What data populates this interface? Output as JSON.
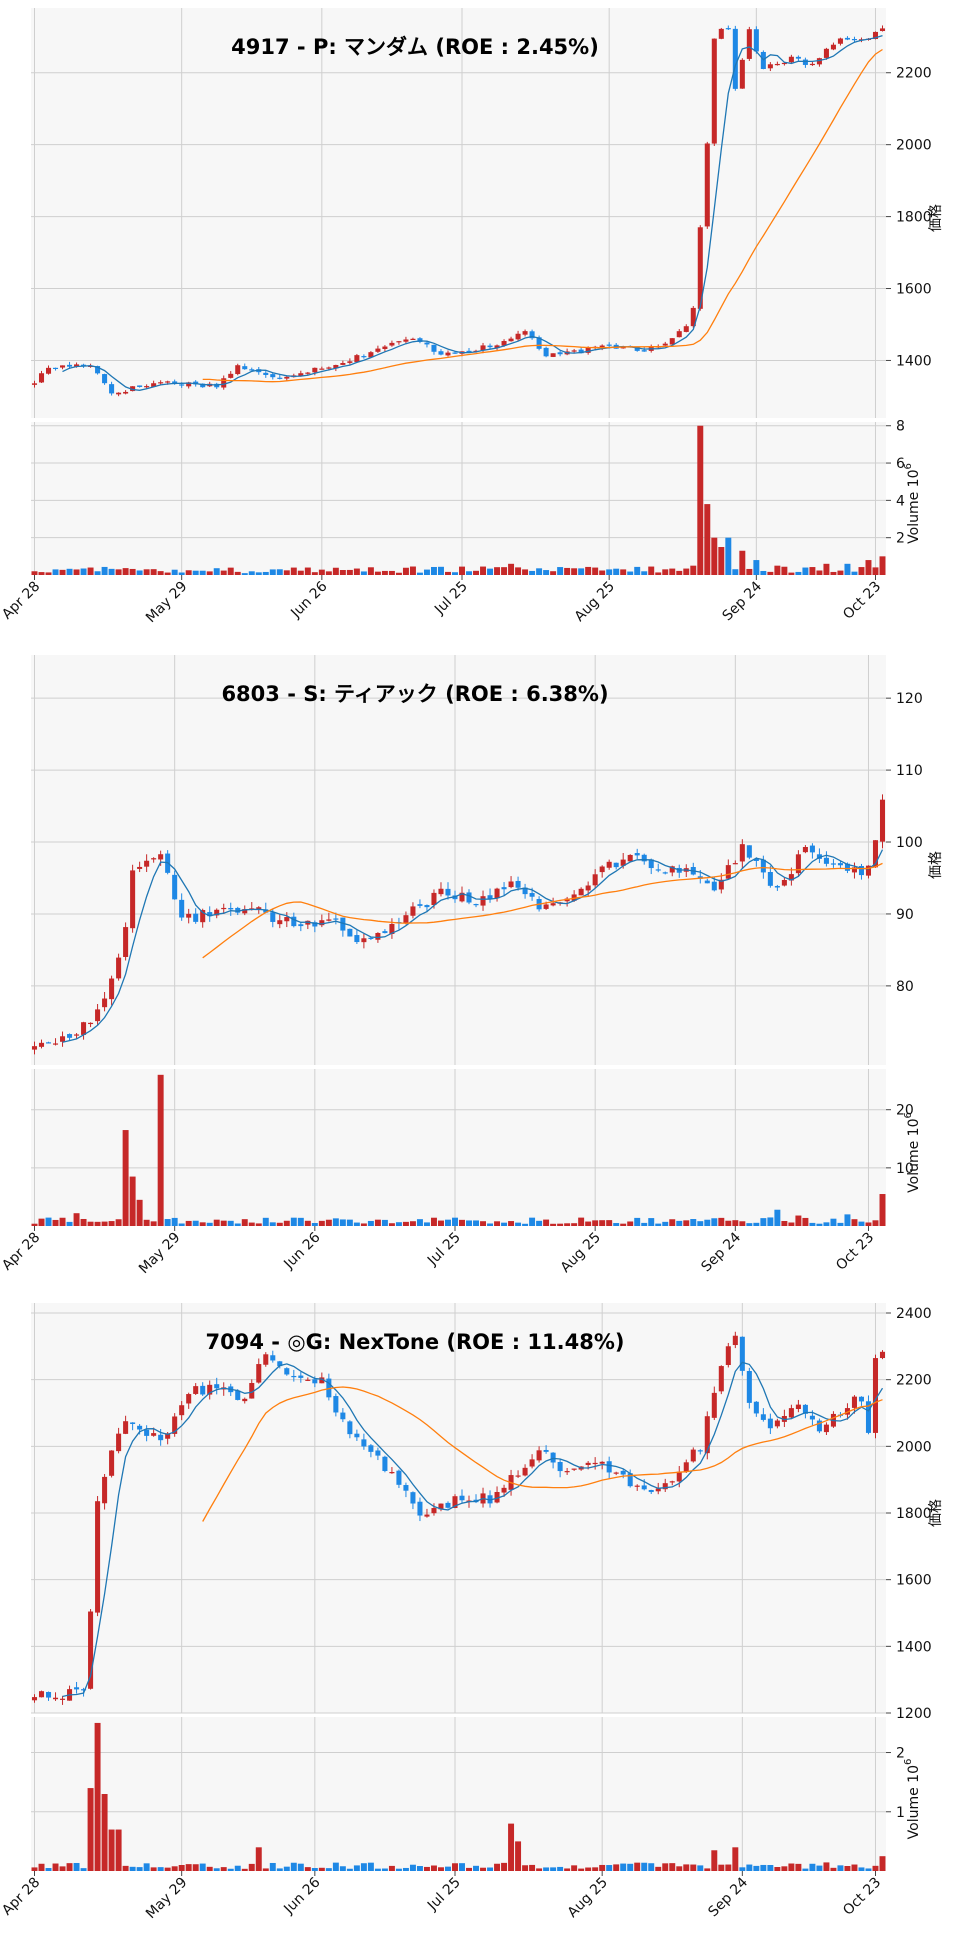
{
  "chart_data": [
    {
      "type": "candlestick",
      "title": "4917 - P: マンダム (ROE : 2.45%)",
      "ylabel": "価格",
      "ylim": [
        1240,
        2380
      ],
      "price_ticks": [
        "1400",
        "1600",
        "1800",
        "2000",
        "2200"
      ],
      "price_tick_values": [
        1400,
        1600,
        1800,
        2000,
        2200
      ],
      "volume_label": "Volume",
      "volume_exp": "6",
      "volume_ylim": [
        0,
        8.2
      ],
      "volume_ticks": [
        "2",
        "4",
        "6",
        "8"
      ],
      "volume_tick_values": [
        2,
        4,
        6,
        8
      ],
      "x_labels": [
        "Apr 28",
        "May 29",
        "Jun 26",
        "Jul 25",
        "Aug 25",
        "Sep 24",
        "Oct 23"
      ],
      "x_label_index": [
        0,
        21,
        41,
        61,
        82,
        103,
        120
      ],
      "n": 122,
      "start": 1340,
      "events": [
        [
          2,
          1380
        ],
        [
          8,
          1390
        ],
        [
          11,
          1310
        ],
        [
          18,
          1340
        ],
        [
          26,
          1330
        ],
        [
          29,
          1385
        ],
        [
          34,
          1350
        ],
        [
          44,
          1395
        ],
        [
          50,
          1440
        ],
        [
          54,
          1460
        ],
        [
          58,
          1420
        ],
        [
          66,
          1440
        ],
        [
          70,
          1485
        ],
        [
          73,
          1410
        ],
        [
          82,
          1440
        ],
        [
          87,
          1430
        ],
        [
          91,
          1460
        ],
        [
          93,
          1500
        ],
        [
          94,
          1550
        ],
        [
          96,
          2000
        ],
        [
          97,
          2300
        ],
        [
          99,
          2330
        ],
        [
          100,
          2150
        ],
        [
          102,
          2320
        ],
        [
          104,
          2210
        ],
        [
          108,
          2240
        ],
        [
          111,
          2220
        ],
        [
          115,
          2300
        ],
        [
          118,
          2290
        ],
        [
          121,
          2320
        ]
      ],
      "volume_events": [
        [
          0,
          0.2
        ],
        [
          3,
          0.3
        ],
        [
          8,
          0.4
        ],
        [
          9,
          0.2
        ],
        [
          30,
          0.1
        ],
        [
          62,
          0.2
        ],
        [
          68,
          0.6
        ],
        [
          70,
          0.3
        ],
        [
          94,
          0.5
        ],
        [
          95,
          8.0
        ],
        [
          96,
          3.8
        ],
        [
          97,
          2.0
        ],
        [
          98,
          1.5
        ],
        [
          99,
          2.0
        ],
        [
          101,
          1.3
        ],
        [
          103,
          0.8
        ],
        [
          106,
          0.5
        ],
        [
          110,
          0.4
        ],
        [
          113,
          0.6
        ],
        [
          116,
          0.6
        ],
        [
          119,
          0.8
        ],
        [
          121,
          1.0
        ]
      ],
      "ma_fast": 5,
      "ma_slow": 25,
      "seed": 17,
      "noise": 7,
      "colors": {
        "up": "#c62828",
        "down": "#1e88e5",
        "ma_fast": "#1f77b4",
        "ma_slow": "#ff7f0e"
      }
    },
    {
      "type": "candlestick",
      "title": "6803 - S: ティアック (ROE : 6.38%)",
      "ylabel": "価格",
      "ylim": [
        69,
        126
      ],
      "price_ticks": [
        "80",
        "90",
        "100",
        "110",
        "120"
      ],
      "price_tick_values": [
        80,
        90,
        100,
        110,
        120
      ],
      "volume_label": "Volume",
      "volume_exp": "6",
      "volume_ylim": [
        0,
        27
      ],
      "volume_ticks": [
        "10",
        "20"
      ],
      "volume_tick_values": [
        10,
        20
      ],
      "x_labels": [
        "Apr 28",
        "May 29",
        "Jun 26",
        "Jul 25",
        "Aug 25",
        "Sep 24",
        "Oct 23"
      ],
      "x_label_index": [
        0,
        20,
        40,
        60,
        80,
        100,
        119
      ],
      "n": 122,
      "start": 72,
      "events": [
        [
          6,
          73
        ],
        [
          10,
          78
        ],
        [
          13,
          88
        ],
        [
          14,
          96
        ],
        [
          16,
          98
        ],
        [
          18,
          98
        ],
        [
          21,
          89
        ],
        [
          25,
          90
        ],
        [
          30,
          91
        ],
        [
          36,
          89
        ],
        [
          43,
          89
        ],
        [
          47,
          86
        ],
        [
          52,
          89
        ],
        [
          58,
          93
        ],
        [
          63,
          92
        ],
        [
          68,
          94
        ],
        [
          72,
          91
        ],
        [
          76,
          92
        ],
        [
          81,
          96
        ],
        [
          85,
          98
        ],
        [
          89,
          96
        ],
        [
          93,
          96
        ],
        [
          97,
          94
        ],
        [
          101,
          99
        ],
        [
          106,
          93
        ],
        [
          110,
          99
        ],
        [
          115,
          96
        ],
        [
          119,
          96
        ],
        [
          121,
          106
        ]
      ],
      "volume_events": [
        [
          6,
          2.2
        ],
        [
          13,
          16.5
        ],
        [
          14,
          8.5
        ],
        [
          15,
          4.5
        ],
        [
          18,
          26.0
        ],
        [
          19,
          1.2
        ],
        [
          81,
          1.0
        ],
        [
          100,
          1.0
        ],
        [
          106,
          2.8
        ],
        [
          109,
          1.8
        ],
        [
          116,
          2.0
        ],
        [
          121,
          5.5
        ]
      ],
      "ma_fast": 5,
      "ma_slow": 25,
      "seed": 68,
      "noise": 0.8,
      "colors": {
        "up": "#c62828",
        "down": "#1e88e5",
        "ma_fast": "#1f77b4",
        "ma_slow": "#ff7f0e"
      }
    },
    {
      "type": "candlestick",
      "title": "7094 - ◎G: NexTone (ROE : 11.48%)",
      "ylabel": "価格",
      "ylim": [
        1200,
        2430
      ],
      "price_ticks": [
        "1200",
        "1400",
        "1600",
        "1800",
        "2000",
        "2200",
        "2400"
      ],
      "price_tick_values": [
        1200,
        1400,
        1600,
        1800,
        2000,
        2200,
        2400
      ],
      "volume_label": "Volume",
      "volume_exp": "6",
      "volume_ylim": [
        0,
        2.6
      ],
      "volume_ticks": [
        "1",
        "2"
      ],
      "volume_tick_values": [
        1,
        2
      ],
      "x_labels": [
        "Apr 28",
        "May 29",
        "Jun 26",
        "Jul 25",
        "Aug 25",
        "Sep 24",
        "Oct 23"
      ],
      "x_label_index": [
        0,
        21,
        40,
        60,
        81,
        101,
        120
      ],
      "n": 122,
      "start": 1255,
      "events": [
        [
          7,
          1260
        ],
        [
          8,
          1510
        ],
        [
          9,
          1820
        ],
        [
          11,
          2000
        ],
        [
          13,
          2080
        ],
        [
          18,
          2020
        ],
        [
          22,
          2160
        ],
        [
          26,
          2180
        ],
        [
          30,
          2140
        ],
        [
          33,
          2280
        ],
        [
          37,
          2210
        ],
        [
          41,
          2200
        ],
        [
          44,
          2070
        ],
        [
          48,
          1990
        ],
        [
          52,
          1880
        ],
        [
          55,
          1800
        ],
        [
          58,
          1820
        ],
        [
          62,
          1850
        ],
        [
          65,
          1840
        ],
        [
          68,
          1900
        ],
        [
          72,
          1990
        ],
        [
          76,
          1920
        ],
        [
          80,
          1950
        ],
        [
          84,
          1910
        ],
        [
          87,
          1860
        ],
        [
          91,
          1910
        ],
        [
          95,
          2000
        ],
        [
          98,
          2250
        ],
        [
          100,
          2320
        ],
        [
          102,
          2140
        ],
        [
          105,
          2060
        ],
        [
          108,
          2130
        ],
        [
          112,
          2050
        ],
        [
          115,
          2100
        ],
        [
          118,
          2150
        ],
        [
          119,
          2040
        ],
        [
          120,
          2260
        ],
        [
          121,
          2270
        ]
      ],
      "volume_events": [
        [
          8,
          1.4
        ],
        [
          9,
          2.5
        ],
        [
          10,
          1.3
        ],
        [
          11,
          0.7
        ],
        [
          12,
          0.7
        ],
        [
          32,
          0.4
        ],
        [
          68,
          0.8
        ],
        [
          69,
          0.5
        ],
        [
          97,
          0.35
        ],
        [
          100,
          0.4
        ],
        [
          121,
          0.25
        ]
      ],
      "ma_fast": 5,
      "ma_slow": 25,
      "seed": 94,
      "noise": 16,
      "colors": {
        "up": "#c62828",
        "down": "#1e88e5",
        "ma_fast": "#1f77b4",
        "ma_slow": "#ff7f0e"
      }
    }
  ]
}
